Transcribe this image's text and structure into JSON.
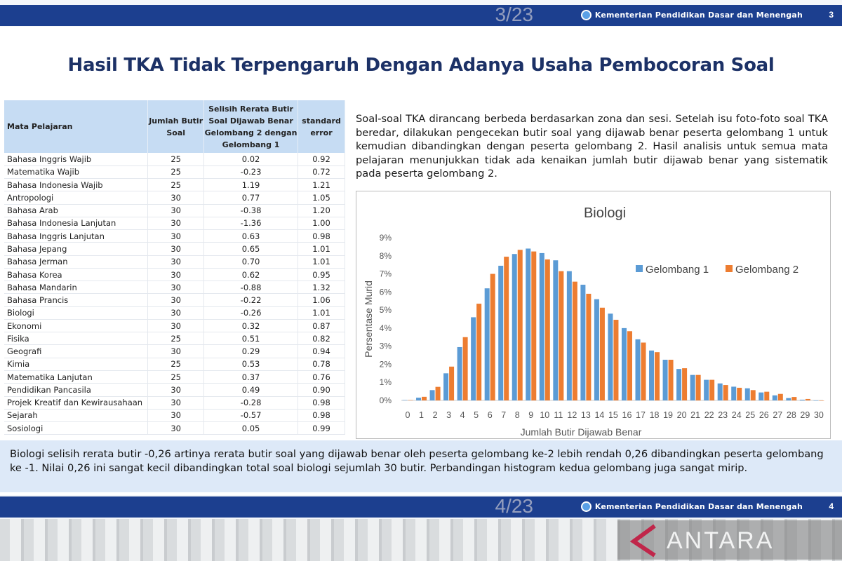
{
  "header": {
    "org": "Kementerian Pendidikan Dasar dan Menengah",
    "page_number": "3",
    "page_overlay": "3/23"
  },
  "footer": {
    "org": "Kementerian Pendidikan Dasar dan Menengah",
    "page_number": "4",
    "page_overlay": "4/23",
    "watermark": "ANTARA"
  },
  "title": "Hasil TKA Tidak Terpengaruh Dengan Adanya Usaha Pembocoran Soal",
  "table": {
    "headers": [
      "Mata Pelajaran",
      "Jumlah Butir Soal",
      "Selisih Rerata Butir Soal Dijawab Benar Gelombang 2 dengan Gelombang 1",
      "standard error"
    ],
    "rows": [
      [
        "Bahasa Inggris Wajib",
        "25",
        "0.02",
        "0.92"
      ],
      [
        "Matematika Wajib",
        "25",
        "-0.23",
        "0.72"
      ],
      [
        "Bahasa Indonesia Wajib",
        "25",
        "1.19",
        "1.21"
      ],
      [
        "Antropologi",
        "30",
        "0.77",
        "1.05"
      ],
      [
        "Bahasa Arab",
        "30",
        "-0.38",
        "1.20"
      ],
      [
        "Bahasa Indonesia Lanjutan",
        "30",
        "-1.36",
        "1.00"
      ],
      [
        "Bahasa Inggris Lanjutan",
        "30",
        "0.63",
        "0.98"
      ],
      [
        "Bahasa Jepang",
        "30",
        "0.65",
        "1.01"
      ],
      [
        "Bahasa Jerman",
        "30",
        "0.70",
        "1.01"
      ],
      [
        "Bahasa Korea",
        "30",
        "0.62",
        "0.95"
      ],
      [
        "Bahasa Mandarin",
        "30",
        "-0.88",
        "1.32"
      ],
      [
        "Bahasa Prancis",
        "30",
        "-0.22",
        "1.06"
      ],
      [
        "Biologi",
        "30",
        "-0.26",
        "1.01"
      ],
      [
        "Ekonomi",
        "30",
        "0.32",
        "0.87"
      ],
      [
        "Fisika",
        "25",
        "0.51",
        "0.82"
      ],
      [
        "Geografi",
        "30",
        "0.29",
        "0.94"
      ],
      [
        "Kimia",
        "25",
        "0.53",
        "0.78"
      ],
      [
        "Matematika Lanjutan",
        "25",
        "0.37",
        "0.76"
      ],
      [
        "Pendidikan Pancasila",
        "30",
        "0.49",
        "0.90"
      ],
      [
        "Projek Kreatif dan Kewirausahaan",
        "30",
        "-0.28",
        "0.98"
      ],
      [
        "Sejarah",
        "30",
        "-0.57",
        "0.98"
      ],
      [
        "Sosiologi",
        "30",
        "0.05",
        "0.99"
      ]
    ]
  },
  "paragraph": "Soal-soal TKA dirancang berbeda berdasarkan zona dan sesi. Setelah isu foto-foto soal TKA beredar, dilakukan pengecekan butir soal yang dijawab benar peserta gelombang 1 untuk kemudian dibandingkan dengan peserta gelombang 2. Hasil analisis untuk semua mata pelajaran menunjukkan tidak ada kenaikan jumlah butir dijawab benar yang sistematik pada peserta gelombang 2.",
  "note": "Biologi selisih rerata butir -0,26 artinya rerata butir soal yang dijawab benar oleh peserta gelombang ke-2 lebih rendah 0,26 dibandingkan peserta gelombang ke -1. Nilai 0,26 ini sangat kecil dibandingkan total soal biologi sejumlah 30 butir. Perbandingan histogram kedua gelombang juga sangat mirip.",
  "chart_data": {
    "type": "bar",
    "title": "Biologi",
    "xlabel": "Jumlah Butir Dijawab Benar",
    "ylabel": "Persentase Murid",
    "ylim": [
      0,
      9
    ],
    "yticks": [
      "0%",
      "1%",
      "2%",
      "3%",
      "4%",
      "5%",
      "6%",
      "7%",
      "8%",
      "9%"
    ],
    "legend": "right",
    "grid": false,
    "categories": [
      "0",
      "1",
      "2",
      "3",
      "4",
      "5",
      "6",
      "7",
      "8",
      "9",
      "10",
      "11",
      "12",
      "13",
      "14",
      "15",
      "16",
      "17",
      "18",
      "19",
      "20",
      "21",
      "22",
      "23",
      "24",
      "25",
      "26",
      "27",
      "28",
      "29",
      "30"
    ],
    "series": [
      {
        "name": "Gelombang 1",
        "color": "#5b9bd5",
        "values": [
          0.02,
          0.15,
          0.57,
          1.5,
          2.95,
          4.6,
          6.2,
          7.45,
          8.1,
          8.4,
          8.15,
          7.75,
          7.15,
          6.4,
          5.6,
          4.8,
          4.0,
          3.38,
          2.76,
          2.25,
          1.74,
          1.41,
          1.14,
          0.94,
          0.76,
          0.67,
          0.44,
          0.28,
          0.13,
          0.04,
          0.0
        ]
      },
      {
        "name": "Gelombang 2",
        "color": "#ed7d31",
        "values": [
          0.02,
          0.2,
          0.75,
          1.87,
          3.5,
          5.35,
          7.0,
          7.95,
          8.33,
          8.24,
          7.8,
          7.15,
          6.57,
          5.9,
          5.13,
          4.46,
          3.83,
          3.2,
          2.67,
          2.25,
          1.78,
          1.41,
          1.14,
          0.85,
          0.7,
          0.57,
          0.48,
          0.36,
          0.19,
          0.08,
          0.0
        ]
      }
    ]
  }
}
